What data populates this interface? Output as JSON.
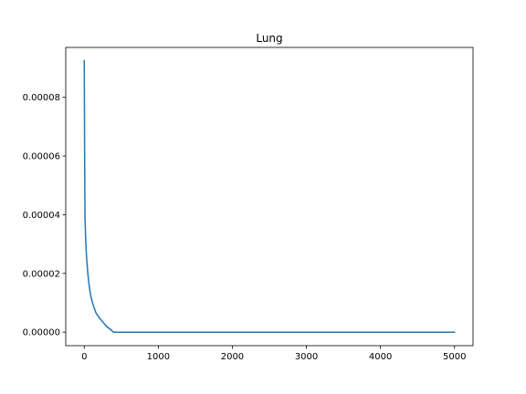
{
  "chart_data": {
    "type": "line",
    "title": "Lung",
    "xlabel": "",
    "ylabel": "",
    "xlim": [
      -250,
      5250
    ],
    "ylim": [
      -4.6e-06,
      9.7e-05
    ],
    "grid": false,
    "legend": "none",
    "x_ticks": [
      0,
      1000,
      2000,
      3000,
      4000,
      5000
    ],
    "x_tick_labels": [
      "0",
      "1000",
      "2000",
      "3000",
      "4000",
      "5000"
    ],
    "y_ticks": [
      0.0,
      2e-05,
      4e-05,
      6e-05,
      8e-05
    ],
    "y_tick_labels": [
      "0.00000",
      "0.00002",
      "0.00004",
      "0.00006",
      "0.00008"
    ],
    "series": [
      {
        "name": "Lung",
        "color": "#1f77b4",
        "x": [
          0,
          5,
          10,
          20,
          30,
          45,
          60,
          80,
          100,
          130,
          160,
          200,
          250,
          300,
          350,
          380,
          400,
          600,
          1000,
          2000,
          3000,
          4000,
          5000
        ],
        "y": [
          9.25e-05,
          6e-05,
          3.9e-05,
          3.1e-05,
          2.6e-05,
          2.1e-05,
          1.7e-05,
          1.35e-05,
          1.1e-05,
          8.5e-06,
          6.5e-06,
          5e-06,
          3.5e-06,
          2e-06,
          1e-06,
          3e-07,
          0.0,
          0.0,
          0.0,
          0.0,
          0.0,
          0.0,
          0.0
        ]
      }
    ]
  }
}
